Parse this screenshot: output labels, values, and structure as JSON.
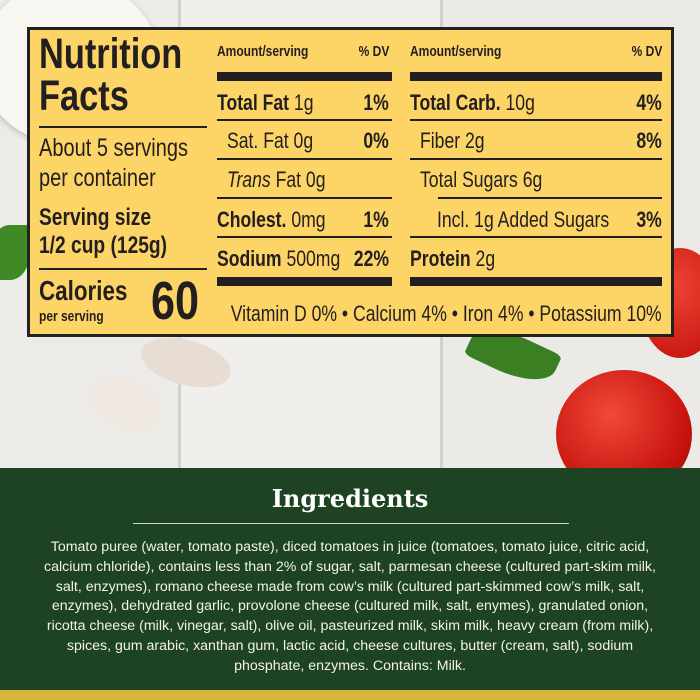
{
  "nutrition": {
    "title_line1": "Nutrition",
    "title_line2": "Facts",
    "servings_line1": "About 5 servings",
    "servings_line2": "per container",
    "serving_size_label": "Serving size",
    "serving_size_value": "1/2 cup (125g)",
    "calories_label": "Calories",
    "calories_sub": "per serving",
    "calories_value": "60",
    "header_amount": "Amount/serving",
    "header_dv": "% DV",
    "left_rows": [
      {
        "name": "Total Fat",
        "amount": "1g",
        "dv": "1%"
      },
      {
        "name": "Sat. Fat",
        "amount": "0g",
        "dv": "0%"
      },
      {
        "name": "Trans",
        "amount": "Fat 0g",
        "dv": ""
      },
      {
        "name": "Cholest.",
        "amount": "0mg",
        "dv": "1%"
      },
      {
        "name": "Sodium",
        "amount": "500mg",
        "dv": "22%"
      }
    ],
    "right_rows": [
      {
        "name": "Total Carb.",
        "amount": "10g",
        "dv": "4%"
      },
      {
        "name": "Fiber",
        "amount": "2g",
        "dv": "8%"
      },
      {
        "name": "Total Sugars",
        "amount": "6g",
        "dv": ""
      },
      {
        "name": "Incl. 1g Added Sugars",
        "amount": "",
        "dv": "3%"
      },
      {
        "name": "Protein",
        "amount": "2g",
        "dv": ""
      }
    ],
    "vitamins": "Vitamin D 0% • Calcium 4% • Iron 4% • Potassium 10%"
  },
  "ingredients": {
    "title": "Ingredients",
    "text": "Tomato puree (water, tomato paste), diced tomatoes in juice (tomatoes, tomato juice, citric acid, calcium chloride), contains less than 2% of sugar, salt, parmesan cheese (cultured part-skim milk, salt, enzymes), romano cheese made from cow’s milk (cultured part-skimmed cow’s milk, salt, enzymes), dehydrated garlic, provolone cheese (cultured milk, salt, enymes), granulated onion, ricotta cheese (milk, vinegar, salt), olive oil, pasteurized milk, skim milk, heavy cream (from milk), spices, gum arabic, xanthan gum, lactic acid, cheese cultures, butter (cream, salt), sodium phosphate, enzymes. Contains: Milk."
  },
  "colors": {
    "label_bg": "#fdd466",
    "panel_green": "#1e4322",
    "tomato": "#d8201a"
  }
}
